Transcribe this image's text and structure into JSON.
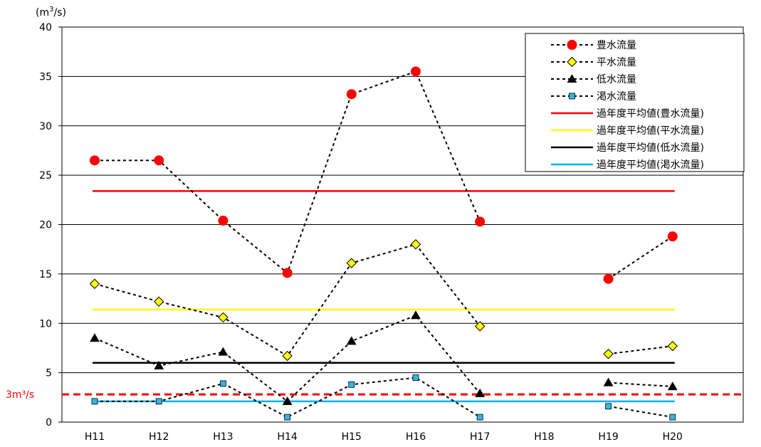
{
  "chart_data": {
    "type": "line",
    "title": "",
    "xlabel": "",
    "ylabel": "",
    "y_unit": {
      "base": "(m",
      "sup": "3",
      "tail": "/s)"
    },
    "ylim": [
      0,
      40
    ],
    "yticks": [
      0,
      5,
      10,
      15,
      20,
      25,
      30,
      35,
      40
    ],
    "grid": true,
    "legend_position": "top-right",
    "categories": [
      "H11",
      "H12",
      "H13",
      "H14",
      "H15",
      "H16",
      "H17",
      "H18",
      "H19",
      "H20"
    ],
    "series": [
      {
        "name": "豊水流量",
        "marker": "circle",
        "color": "#ff0000",
        "values": [
          26.5,
          26.5,
          20.4,
          15.1,
          33.2,
          35.5,
          20.3,
          null,
          14.5,
          18.8
        ]
      },
      {
        "name": "平水流量",
        "marker": "diamond",
        "color": "#ffff00",
        "values": [
          14.0,
          12.2,
          10.6,
          6.7,
          16.1,
          18.0,
          9.7,
          null,
          6.9,
          7.7
        ]
      },
      {
        "name": "低水流量",
        "marker": "triangle",
        "color": "#000000",
        "values": [
          8.5,
          5.7,
          7.1,
          2.1,
          8.2,
          10.8,
          2.9,
          null,
          4.0,
          3.6
        ]
      },
      {
        "name": "渇水流量",
        "marker": "square",
        "color": "#33b5e5",
        "values": [
          2.1,
          2.1,
          3.9,
          0.5,
          3.8,
          4.5,
          0.5,
          null,
          1.6,
          0.5
        ]
      }
    ],
    "averages": [
      {
        "name": "過年度平均値(豊水流量)",
        "color": "#ff0000",
        "value": 23.4
      },
      {
        "name": "過年度平均値(平水流量)",
        "color": "#ffff00",
        "value": 11.4
      },
      {
        "name": "過年度平均値(低水流量)",
        "color": "#000000",
        "value": 6.0
      },
      {
        "name": "過年度平均値(渇水流量)",
        "color": "#00b0f0",
        "value": 2.1
      }
    ],
    "reference_line": {
      "label": "3m³/s",
      "value": 2.8,
      "color": "#ff0000",
      "style": "dashed"
    }
  }
}
